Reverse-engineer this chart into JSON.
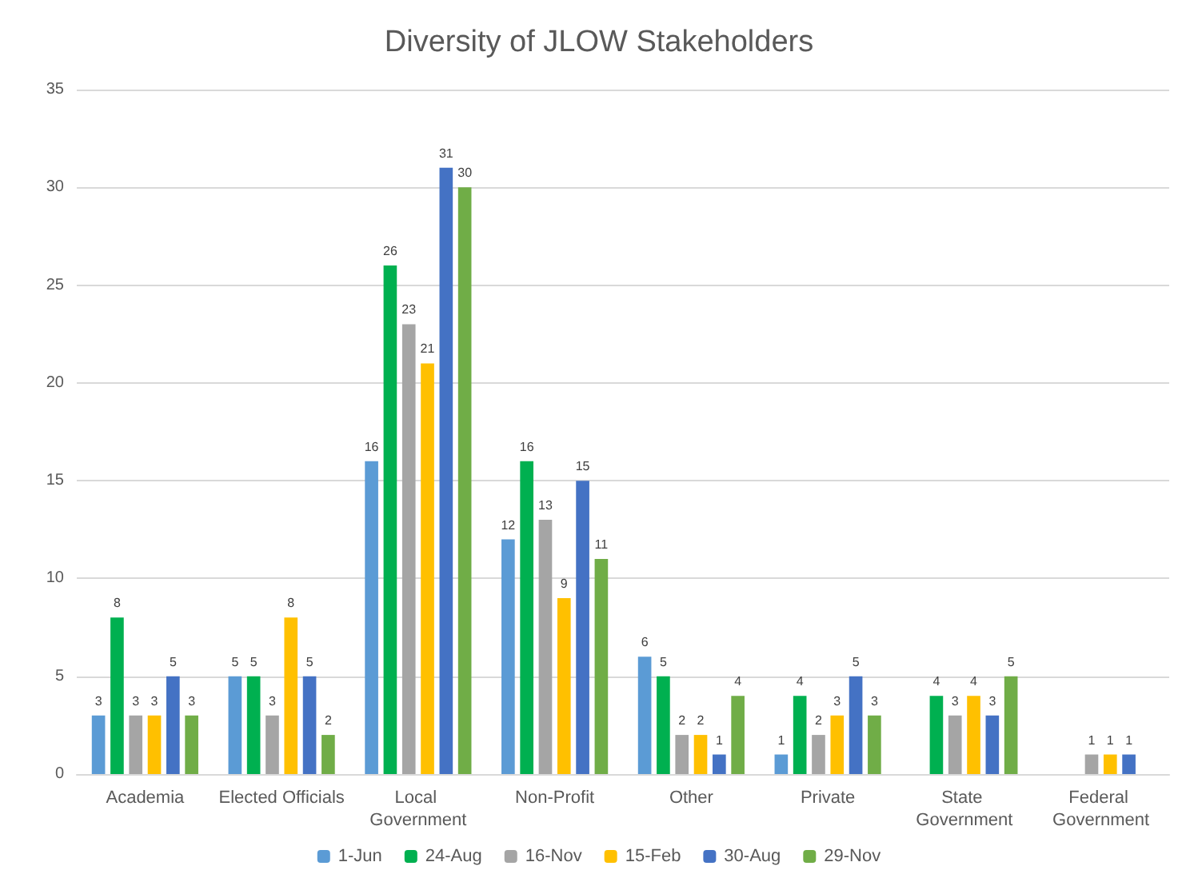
{
  "chart_data": {
    "type": "bar",
    "title": "Diversity of JLOW Stakeholders",
    "categories": [
      "Academia",
      "Elected Officials",
      "Local Government",
      "Non-Profit",
      "Other",
      "Private",
      "State Government",
      "Federal Government"
    ],
    "series": [
      {
        "name": "1-Jun",
        "color": "#5b9bd5",
        "values": [
          3,
          5,
          16,
          12,
          6,
          1,
          null,
          null
        ]
      },
      {
        "name": "24-Aug",
        "color": "#00b050",
        "values": [
          8,
          5,
          26,
          16,
          5,
          4,
          4,
          null
        ]
      },
      {
        "name": "16-Nov",
        "color": "#a5a5a5",
        "values": [
          3,
          3,
          23,
          13,
          2,
          2,
          3,
          1
        ]
      },
      {
        "name": "15-Feb",
        "color": "#ffc000",
        "values": [
          3,
          8,
          21,
          9,
          2,
          3,
          4,
          1
        ]
      },
      {
        "name": "30-Aug",
        "color": "#4472c4",
        "values": [
          5,
          5,
          31,
          15,
          1,
          5,
          3,
          1
        ]
      },
      {
        "name": "29-Nov",
        "color": "#70ad47",
        "values": [
          3,
          2,
          30,
          11,
          4,
          3,
          5,
          null
        ]
      }
    ],
    "ylim": [
      0,
      35
    ],
    "yticks": [
      0,
      5,
      10,
      15,
      20,
      25,
      30,
      35
    ],
    "grid": "y",
    "legend": "bottom",
    "data_labels": true
  }
}
